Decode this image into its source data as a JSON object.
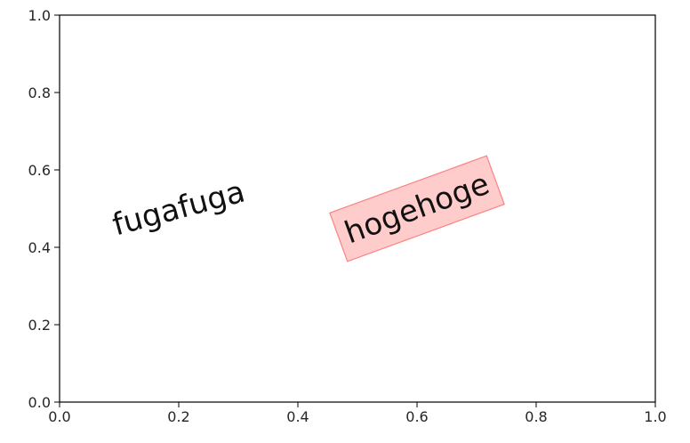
{
  "chart_data": {
    "type": "scatter",
    "title": "",
    "xlabel": "",
    "ylabel": "",
    "xlim": [
      0.0,
      1.0
    ],
    "ylim": [
      0.0,
      1.0
    ],
    "grid": false,
    "x_ticks": [
      "0.0",
      "0.2",
      "0.4",
      "0.6",
      "0.8",
      "1.0"
    ],
    "y_ticks": [
      "0.0",
      "0.2",
      "0.4",
      "0.6",
      "0.8",
      "1.0"
    ],
    "series": [],
    "annotations": [
      {
        "text": "fugafuga",
        "x": 0.2,
        "y": 0.5,
        "rotation_deg": 15,
        "boxed": false
      },
      {
        "text": "hogehoge",
        "x": 0.6,
        "y": 0.5,
        "rotation_deg": 20,
        "boxed": true,
        "box_fill": "#ffcccc",
        "box_edge": "#ff8080"
      }
    ]
  },
  "colors": {
    "axes": "#000000",
    "text": "#111111"
  }
}
